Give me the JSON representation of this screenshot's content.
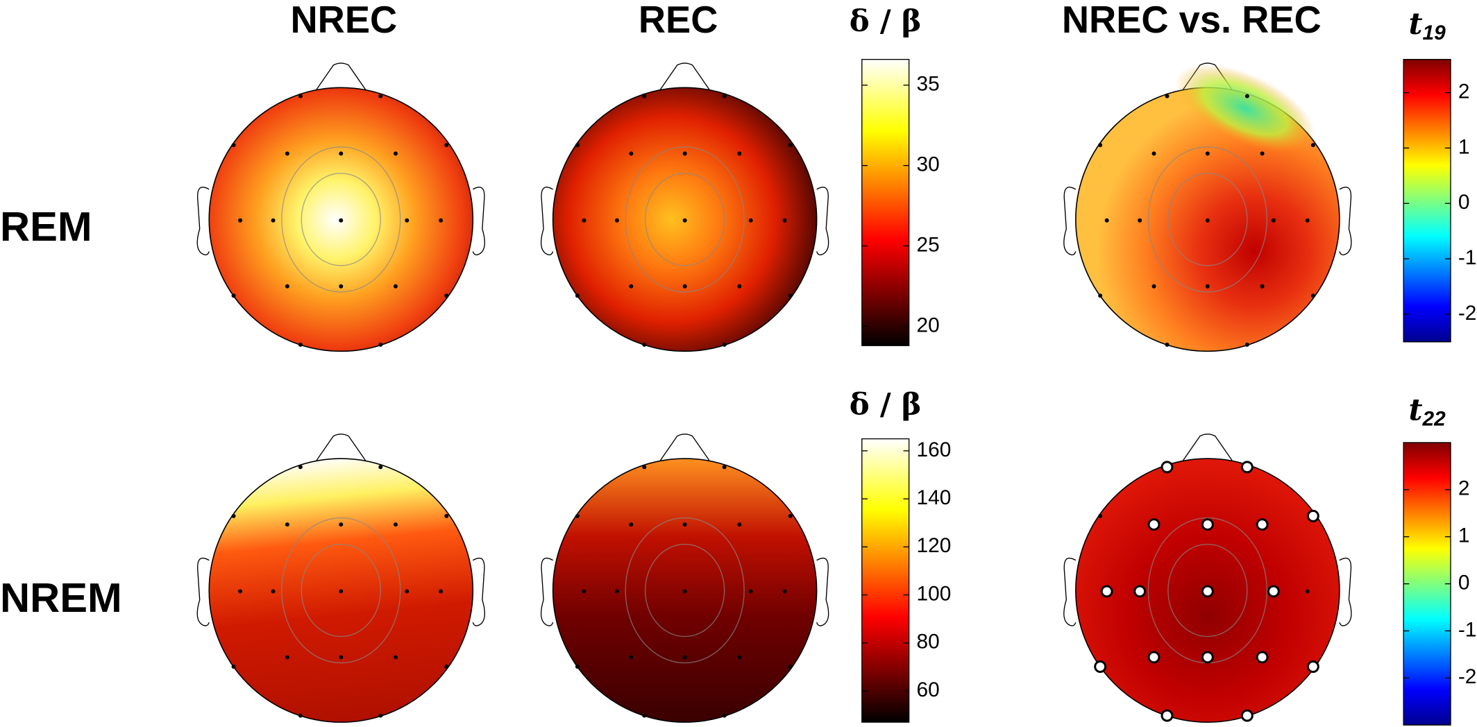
{
  "columns": [
    "NREC",
    "REC",
    "NREC vs. REC"
  ],
  "rows": [
    "REM",
    "NREM"
  ],
  "colorbars": [
    {
      "symbol": "δ / β",
      "colormap": "hot",
      "lim": [
        18.8,
        36.6
      ],
      "ticks": [
        20,
        25,
        30,
        35
      ]
    },
    {
      "symbol": "t",
      "subscript": "19",
      "colormap": "jet",
      "lim": [
        -2.5,
        2.6
      ],
      "ticks": [
        -2,
        -1,
        0,
        1,
        2
      ]
    },
    {
      "symbol": "δ / β",
      "colormap": "hot",
      "lim": [
        47,
        165
      ],
      "ticks": [
        60,
        80,
        100,
        120,
        140,
        160
      ]
    },
    {
      "symbol": "t",
      "subscript": "22",
      "colormap": "jet",
      "lim": [
        -3,
        3
      ],
      "ticks": [
        -2,
        -1,
        0,
        1,
        2
      ]
    }
  ]
}
